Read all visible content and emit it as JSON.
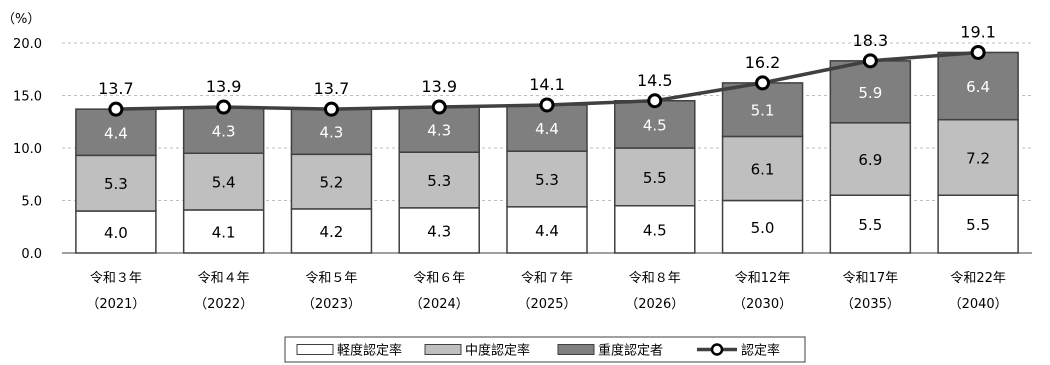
{
  "chart_data": {
    "type": "bar",
    "stacked": true,
    "unit_label": "（%）",
    "categories": [
      "令和３年",
      "令和４年",
      "令和５年",
      "令和６年",
      "令和７年",
      "令和８年",
      "令和12年",
      "令和17年",
      "令和22年"
    ],
    "category_years": [
      "（2021）",
      "（2022）",
      "（2023）",
      "（2024）",
      "（2025）",
      "（2026）",
      "（2030）",
      "（2035）",
      "（2040）"
    ],
    "ylim": [
      0,
      20
    ],
    "yticks": [
      "0.0",
      "5.0",
      "10.0",
      "15.0",
      "20.0"
    ],
    "grid": true,
    "legend_position": "bottom",
    "series": [
      {
        "name": "軽度認定率",
        "type": "bar",
        "color": "#ffffff",
        "label_color": "#000000",
        "values": [
          4.0,
          4.1,
          4.2,
          4.3,
          4.4,
          4.5,
          5.0,
          5.5,
          5.5
        ],
        "labels": [
          "4.0",
          "4.1",
          "4.2",
          "4.3",
          "4.4",
          "4.5",
          "5.0",
          "5.5",
          "5.5"
        ]
      },
      {
        "name": "中度認定率",
        "type": "bar",
        "color": "#bfbfbf",
        "label_color": "#000000",
        "values": [
          5.3,
          5.4,
          5.2,
          5.3,
          5.3,
          5.5,
          6.1,
          6.9,
          7.2
        ],
        "labels": [
          "5.3",
          "5.4",
          "5.2",
          "5.3",
          "5.3",
          "5.5",
          "6.1",
          "6.9",
          "7.2"
        ]
      },
      {
        "name": "重度認定者",
        "type": "bar",
        "color": "#7f7f7f",
        "label_color": "#ffffff",
        "values": [
          4.4,
          4.3,
          4.3,
          4.3,
          4.4,
          4.5,
          5.1,
          5.9,
          6.4
        ],
        "labels": [
          "4.4",
          "4.3",
          "4.3",
          "4.3",
          "4.4",
          "4.5",
          "5.1",
          "5.9",
          "6.4"
        ]
      },
      {
        "name": "認定率",
        "type": "line",
        "color": "#404040",
        "values": [
          13.7,
          13.9,
          13.7,
          13.9,
          14.1,
          14.5,
          16.2,
          18.3,
          19.1
        ],
        "labels": [
          "13.7",
          "13.9",
          "13.7",
          "13.9",
          "14.1",
          "14.5",
          "16.2",
          "18.3",
          "19.1"
        ]
      }
    ]
  }
}
